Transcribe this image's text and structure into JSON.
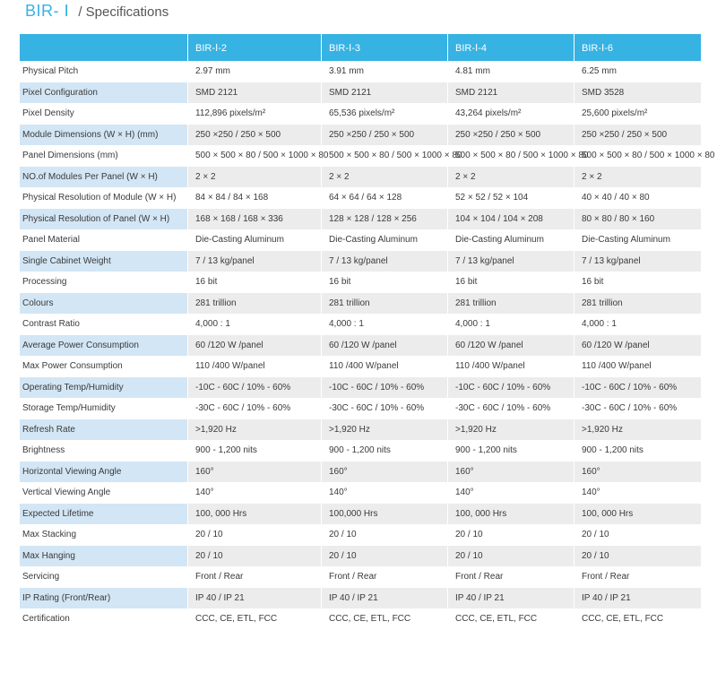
{
  "header": {
    "brand": "BIR- Ⅰ",
    "subtitle": "/ Specifications"
  },
  "columns": [
    "",
    "BIR-Ⅰ-2",
    "BIR-Ⅰ-3",
    "BIR-Ⅰ-4",
    "BIR-Ⅰ-6"
  ],
  "rows": [
    {
      "label": "Physical Pitch",
      "values": [
        "2.97  mm",
        "3.91 mm",
        "4.81 mm",
        "6.25 mm"
      ]
    },
    {
      "label": "Pixel Configuration",
      "values": [
        "SMD 2121",
        "SMD 2121",
        "SMD 2121",
        "SMD 3528"
      ]
    },
    {
      "label": "Pixel Density",
      "values": [
        "112,896  pixels/m²",
        "65,536 pixels/m²",
        "43,264 pixels/m²",
        "25,600 pixels/m²"
      ]
    },
    {
      "label": "Module Dimensions (W × H) (mm)",
      "values": [
        "250  ×250  / 250 × 500",
        "250  ×250  / 250  ×  500",
        "250  ×250  / 250  ×  500",
        "250  ×250  / 250  ×  500"
      ]
    },
    {
      "label": "Panel Dimensions (mm)",
      "values": [
        "500 × 500 × 80  / 500 × 1000 × 80",
        "500 × 500 × 80  / 500 × 1000 × 80",
        "500 × 500 × 80  / 500 × 1000 × 80",
        "500 × 500 × 80  / 500 × 1000 × 80"
      ]
    },
    {
      "label": "NO.of Modules Per Panel (W × H)",
      "values": [
        "2 × 2",
        "2 × 2",
        "2 × 2",
        "2 × 2"
      ]
    },
    {
      "label": "Physical Resolution of Module (W × H)",
      "values": [
        "84 ×  84 / 84 × 168",
        "64 ×  64 / 64 × 128",
        "52 ×  52 / 52 × 104",
        "40 × 40 / 40 × 80"
      ]
    },
    {
      "label": "Physical Resolution of Panel (W × H)",
      "values": [
        "168 × 168 / 168 × 336",
        " 128 × 128 / 128 × 256",
        "104 × 104 / 104 × 208",
        "80 × 80 / 80 × 160"
      ]
    },
    {
      "label": "Panel Material",
      "values": [
        "Die-Casting Aluminum",
        "Die-Casting Aluminum",
        "Die-Casting Aluminum",
        "Die-Casting Aluminum"
      ]
    },
    {
      "label": "Single Cabinet Weight",
      "values": [
        "7 / 13  kg/panel",
        "7 / 13  kg/panel",
        "7 / 13  kg/panel",
        "7 / 13  kg/panel"
      ]
    },
    {
      "label": "Processing",
      "values": [
        "16 bit",
        "16 bit",
        "16 bit",
        "16 bit"
      ]
    },
    {
      "label": "Colours",
      "values": [
        "281 trillion",
        "281 trillion",
        "281 trillion",
        "281 trillion"
      ]
    },
    {
      "label": "Contrast Ratio",
      "values": [
        "4,000 : 1",
        "4,000 : 1",
        "4,000 : 1",
        "4,000 : 1"
      ]
    },
    {
      "label": "Average Power Consumption",
      "values": [
        "60 /120  W /panel",
        "60 /120  W /panel",
        "60 /120  W /panel",
        "60 /120  W /panel"
      ]
    },
    {
      "label": "Max Power Consumption",
      "values": [
        "110 /400  W/panel",
        "110 /400  W/panel",
        "110 /400  W/panel",
        "110 /400  W/panel"
      ]
    },
    {
      "label": "Operating Temp/Humidity",
      "values": [
        "-10C - 60C / 10% - 60%",
        "-10C - 60C / 10% - 60%",
        "-10C - 60C / 10% - 60%",
        "-10C - 60C / 10% - 60%"
      ]
    },
    {
      "label": "Storage Temp/Humidity",
      "values": [
        "-30C - 60C / 10% - 60%",
        "-30C - 60C / 10% - 60%",
        "-30C - 60C / 10% - 60%",
        "-30C - 60C / 10% - 60%"
      ]
    },
    {
      "label": "Refresh Rate",
      "values": [
        ">1,920 Hz",
        ">1,920 Hz",
        ">1,920 Hz",
        ">1,920 Hz"
      ]
    },
    {
      "label": "Brightness",
      "values": [
        "900 - 1,200 nits",
        "900 - 1,200 nits",
        "900 - 1,200 nits",
        "900 - 1,200 nits"
      ]
    },
    {
      "label": "Horizontal Viewing Angle",
      "values": [
        "160°",
        "160°",
        "160°",
        "160°"
      ]
    },
    {
      "label": "Vertical Viewing Angle",
      "values": [
        "140°",
        "140°",
        "140°",
        "140°"
      ]
    },
    {
      "label": "Expected Lifetime",
      "values": [
        "100, 000 Hrs",
        "100,000  Hrs",
        "100, 000 Hrs",
        "100, 000 Hrs"
      ]
    },
    {
      "label": "Max Stacking",
      "values": [
        "20 / 10",
        "20 / 10",
        "20 / 10",
        "20 / 10"
      ]
    },
    {
      "label": "Max Hanging",
      "values": [
        "20 / 10",
        "20 / 10",
        "20 / 10",
        "20 / 10"
      ]
    },
    {
      "label": "Servicing",
      "values": [
        "Front / Rear",
        "Front / Rear",
        "Front / Rear",
        "Front / Rear"
      ]
    },
    {
      "label": "IP Rating (Front/Rear)",
      "values": [
        "IP 40 / IP 21",
        "IP 40 / IP 21",
        "IP 40 / IP 21",
        "IP 40 / IP 21"
      ]
    },
    {
      "label": "Certification",
      "values": [
        "CCC, CE, ETL, FCC",
        "CCC, CE, ETL, FCC",
        "CCC, CE, ETL, FCC",
        "CCC, CE, ETL, FCC"
      ]
    }
  ],
  "colors": {
    "accent": "#36b2e3",
    "label_shade": "#d3e6f5",
    "row_shade": "#ececec"
  }
}
